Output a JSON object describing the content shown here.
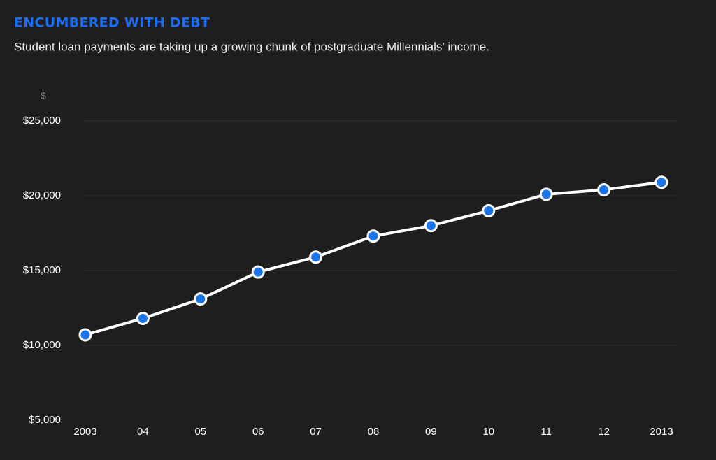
{
  "chart_data": {
    "type": "line",
    "title": "ENCUMBERED WITH DEBT",
    "subtitle": "Student loan payments are taking up a growing chunk of postgraduate Millennials' income.",
    "y_axis_label": "$",
    "categories": [
      "2003",
      "04",
      "05",
      "06",
      "07",
      "08",
      "09",
      "10",
      "11",
      "12",
      "2013"
    ],
    "series": [
      {
        "color": "#ffffff",
        "marker_color": "#1a73e8",
        "values": [
          10700,
          11800,
          13100,
          14900,
          15900,
          17300,
          18000,
          19000,
          20100,
          20400,
          20900
        ]
      }
    ],
    "ylim": [
      5000,
      25000
    ],
    "yticks": [
      {
        "value": 5000,
        "label": "$5,000"
      },
      {
        "value": 10000,
        "label": "$10,000"
      },
      {
        "value": 15000,
        "label": "$15,000"
      },
      {
        "value": 20000,
        "label": "$20,000"
      },
      {
        "value": 25000,
        "label": "$25,000"
      }
    ],
    "grid": true
  }
}
